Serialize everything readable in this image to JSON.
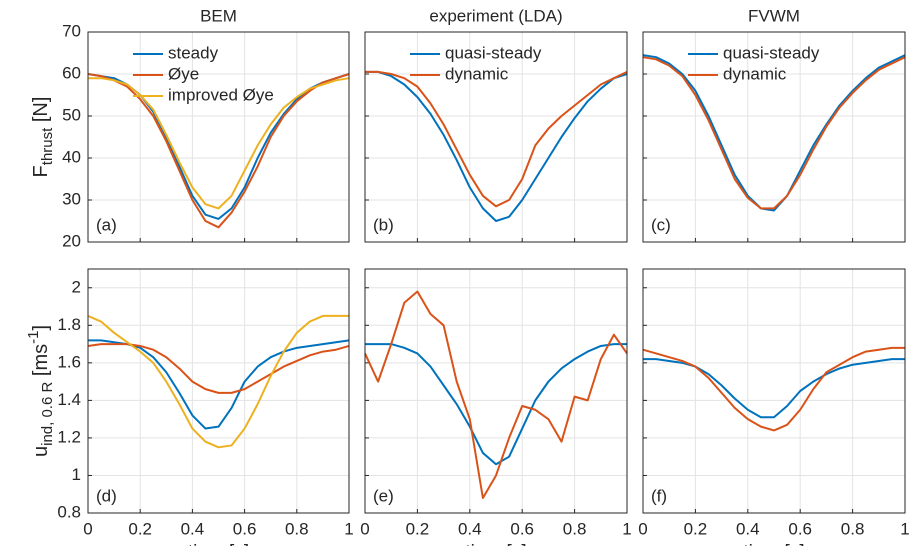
{
  "chart_data": [
    {
      "type": "line",
      "title": "BEM",
      "annotation": "(a)",
      "ylabel": [
        {
          "text": "F"
        },
        {
          "text": "thrust",
          "script": "sub"
        },
        {
          "text": " [N]"
        }
      ],
      "x": [
        0,
        0.05,
        0.1,
        0.15,
        0.2,
        0.25,
        0.3,
        0.35,
        0.4,
        0.45,
        0.5,
        0.55,
        0.6,
        0.65,
        0.7,
        0.75,
        0.8,
        0.85,
        0.9,
        0.95,
        1
      ],
      "series": [
        {
          "name": "steady",
          "color": "#0072bd",
          "values": [
            60,
            59.5,
            59,
            57.5,
            55,
            51,
            45,
            38,
            31,
            26.5,
            25.5,
            28,
            33,
            40,
            46,
            50.5,
            54,
            56.5,
            58,
            59,
            60
          ]
        },
        {
          "name": "Øye",
          "color": "#d95319",
          "values": [
            60,
            59.5,
            58.5,
            57,
            54,
            50,
            44,
            37,
            30,
            25,
            23.5,
            27,
            32,
            38,
            45,
            50,
            53.5,
            56,
            58,
            59,
            60
          ]
        },
        {
          "name": "improved Øye",
          "color": "#edb120",
          "values": [
            59,
            59,
            58.5,
            57.5,
            55,
            51.5,
            45.5,
            39,
            33,
            29,
            28,
            31,
            37,
            43,
            48,
            52,
            54.5,
            56.5,
            57.5,
            58.5,
            59
          ]
        }
      ],
      "xlim": [
        0,
        1
      ],
      "xticks": [
        0,
        0.2,
        0.4,
        0.6,
        0.8,
        1
      ],
      "ylim": [
        20,
        70
      ],
      "yticks": [
        20,
        30,
        40,
        50,
        60,
        70
      ],
      "grid": true,
      "legend": "upper center"
    },
    {
      "type": "line",
      "title": "experiment (LDA)",
      "annotation": "(b)",
      "x": [
        0,
        0.05,
        0.1,
        0.15,
        0.2,
        0.25,
        0.3,
        0.35,
        0.4,
        0.45,
        0.5,
        0.55,
        0.6,
        0.65,
        0.7,
        0.75,
        0.8,
        0.85,
        0.9,
        0.95,
        1
      ],
      "series": [
        {
          "name": "quasi-steady",
          "color": "#0072bd",
          "values": [
            60.5,
            60.5,
            59.5,
            57.5,
            54.5,
            50.5,
            45.5,
            39.5,
            33,
            28,
            25,
            26,
            30,
            35,
            40,
            45,
            49.5,
            53.5,
            56.5,
            59,
            60
          ]
        },
        {
          "name": "dynamic",
          "color": "#d95319",
          "values": [
            60.5,
            60.5,
            60,
            59,
            57,
            53,
            48,
            42,
            36,
            31,
            28.5,
            30,
            35,
            43,
            47,
            50,
            52.5,
            55,
            57.5,
            59,
            60.5
          ]
        }
      ],
      "xlim": [
        0,
        1
      ],
      "xticks": [
        0,
        0.2,
        0.4,
        0.6,
        0.8,
        1
      ],
      "ylim": [
        20,
        70
      ],
      "yticks": [
        20,
        30,
        40,
        50,
        60,
        70
      ],
      "grid": true,
      "legend": "upper center"
    },
    {
      "type": "line",
      "title": "FVWM",
      "annotation": "(c)",
      "x": [
        0,
        0.05,
        0.1,
        0.15,
        0.2,
        0.25,
        0.3,
        0.35,
        0.4,
        0.45,
        0.5,
        0.55,
        0.6,
        0.65,
        0.7,
        0.75,
        0.8,
        0.85,
        0.9,
        0.95,
        1
      ],
      "series": [
        {
          "name": "quasi-steady",
          "color": "#0072bd",
          "values": [
            64.5,
            64,
            62.5,
            60,
            56,
            50,
            43,
            36,
            31,
            28,
            27.5,
            31,
            37,
            43,
            48,
            52.5,
            56,
            59,
            61.5,
            63,
            64.5
          ]
        },
        {
          "name": "dynamic",
          "color": "#d95319",
          "values": [
            64,
            63.5,
            62,
            59.5,
            55,
            49,
            42,
            35,
            30.5,
            28,
            28,
            31,
            36,
            42,
            47.5,
            52,
            55.5,
            58.5,
            61,
            62.5,
            64
          ]
        }
      ],
      "xlim": [
        0,
        1
      ],
      "xticks": [
        0,
        0.2,
        0.4,
        0.6,
        0.8,
        1
      ],
      "ylim": [
        20,
        70
      ],
      "yticks": [
        20,
        30,
        40,
        50,
        60,
        70
      ],
      "grid": true,
      "legend": "upper center"
    },
    {
      "type": "line",
      "annotation": "(d)",
      "xlabel": "time [s]",
      "ylabel": [
        {
          "text": "u"
        },
        {
          "text": "ind, 0.6 R",
          "script": "sub"
        },
        {
          "text": " [ms"
        },
        {
          "text": "-1",
          "script": "super"
        },
        {
          "text": "]"
        }
      ],
      "x": [
        0,
        0.05,
        0.1,
        0.15,
        0.2,
        0.25,
        0.3,
        0.35,
        0.4,
        0.45,
        0.5,
        0.55,
        0.6,
        0.65,
        0.7,
        0.75,
        0.8,
        0.85,
        0.9,
        0.95,
        1
      ],
      "series": [
        {
          "name": "steady",
          "color": "#0072bd",
          "values": [
            1.72,
            1.72,
            1.71,
            1.7,
            1.68,
            1.63,
            1.55,
            1.44,
            1.32,
            1.25,
            1.26,
            1.36,
            1.5,
            1.58,
            1.63,
            1.66,
            1.68,
            1.69,
            1.7,
            1.71,
            1.72
          ]
        },
        {
          "name": "Øye",
          "color": "#d95319",
          "values": [
            1.69,
            1.7,
            1.7,
            1.7,
            1.69,
            1.67,
            1.63,
            1.57,
            1.5,
            1.46,
            1.44,
            1.44,
            1.46,
            1.5,
            1.54,
            1.58,
            1.61,
            1.64,
            1.66,
            1.67,
            1.69
          ]
        },
        {
          "name": "improved Øye",
          "color": "#edb120",
          "values": [
            1.85,
            1.82,
            1.76,
            1.71,
            1.66,
            1.6,
            1.5,
            1.38,
            1.25,
            1.18,
            1.15,
            1.16,
            1.25,
            1.38,
            1.53,
            1.66,
            1.76,
            1.82,
            1.85,
            1.85,
            1.85
          ]
        }
      ],
      "xlim": [
        0,
        1
      ],
      "xticks": [
        0,
        0.2,
        0.4,
        0.6,
        0.8,
        1
      ],
      "ylim": [
        0.8,
        2.1
      ],
      "yticks": [
        0.8,
        1,
        1.2,
        1.4,
        1.6,
        1.8,
        2
      ],
      "grid": true
    },
    {
      "type": "line",
      "annotation": "(e)",
      "xlabel": "time [s]",
      "x": [
        0,
        0.05,
        0.1,
        0.15,
        0.2,
        0.25,
        0.3,
        0.35,
        0.4,
        0.45,
        0.5,
        0.55,
        0.6,
        0.65,
        0.7,
        0.75,
        0.8,
        0.85,
        0.9,
        0.95,
        1
      ],
      "series": [
        {
          "name": "quasi-steady",
          "color": "#0072bd",
          "values": [
            1.7,
            1.7,
            1.7,
            1.68,
            1.65,
            1.58,
            1.48,
            1.38,
            1.26,
            1.12,
            1.06,
            1.1,
            1.25,
            1.4,
            1.5,
            1.57,
            1.62,
            1.66,
            1.69,
            1.7,
            1.7
          ]
        },
        {
          "name": "dynamic",
          "color": "#d95319",
          "values": [
            1.65,
            1.5,
            1.7,
            1.92,
            1.98,
            1.86,
            1.8,
            1.5,
            1.3,
            0.88,
            1.0,
            1.2,
            1.37,
            1.35,
            1.3,
            1.18,
            1.42,
            1.4,
            1.62,
            1.75,
            1.65
          ]
        }
      ],
      "xlim": [
        0,
        1
      ],
      "xticks": [
        0,
        0.2,
        0.4,
        0.6,
        0.8,
        1
      ],
      "ylim": [
        0.8,
        2.1
      ],
      "yticks": [
        0.8,
        1,
        1.2,
        1.4,
        1.6,
        1.8,
        2
      ],
      "grid": true
    },
    {
      "type": "line",
      "annotation": "(f)",
      "xlabel": "time [s]",
      "x": [
        0,
        0.05,
        0.1,
        0.15,
        0.2,
        0.25,
        0.3,
        0.35,
        0.4,
        0.45,
        0.5,
        0.55,
        0.6,
        0.65,
        0.7,
        0.75,
        0.8,
        0.85,
        0.9,
        0.95,
        1
      ],
      "series": [
        {
          "name": "quasi-steady",
          "color": "#0072bd",
          "values": [
            1.62,
            1.62,
            1.61,
            1.6,
            1.58,
            1.54,
            1.48,
            1.41,
            1.35,
            1.31,
            1.31,
            1.37,
            1.45,
            1.5,
            1.54,
            1.57,
            1.59,
            1.6,
            1.61,
            1.62,
            1.62
          ]
        },
        {
          "name": "dynamic",
          "color": "#d95319",
          "values": [
            1.67,
            1.65,
            1.63,
            1.61,
            1.58,
            1.52,
            1.44,
            1.36,
            1.3,
            1.26,
            1.24,
            1.27,
            1.35,
            1.46,
            1.55,
            1.59,
            1.63,
            1.66,
            1.67,
            1.68,
            1.68
          ]
        }
      ],
      "xlim": [
        0,
        1
      ],
      "xticks": [
        0,
        0.2,
        0.4,
        0.6,
        0.8,
        1
      ],
      "ylim": [
        0.8,
        2.1
      ],
      "yticks": [
        0.8,
        1,
        1.2,
        1.4,
        1.6,
        1.8,
        2
      ],
      "grid": true
    }
  ]
}
